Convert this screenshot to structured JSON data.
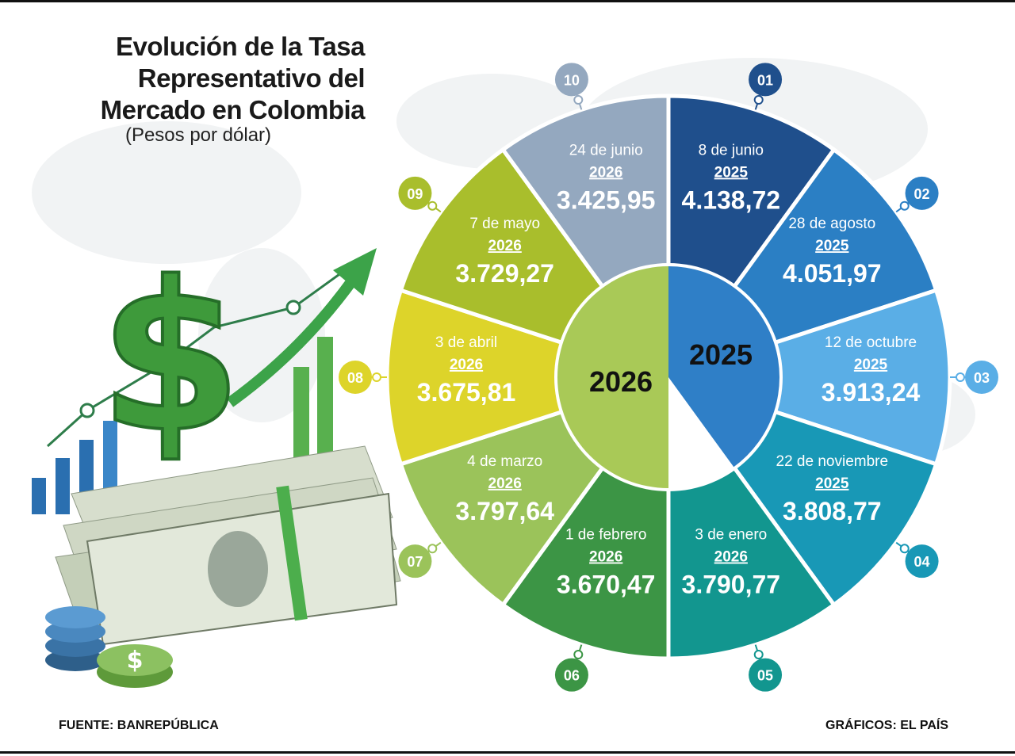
{
  "header": {
    "title_lines": [
      "Evolución de la Tasa",
      "Representativo del",
      "Mercado en Colombia"
    ],
    "subtitle": "(Pesos por dólar)"
  },
  "footer": {
    "source": "FUENTE: BANREPÚBLICA",
    "credit": "GRÁFICOS: EL PAÍS"
  },
  "chart_data": {
    "type": "pie",
    "center_labels": [
      "2026",
      "2025"
    ],
    "center_colors": [
      "#a9c957",
      "#2f7fc7"
    ],
    "segments": [
      {
        "number": "01",
        "date": "8 de junio",
        "year": "2025",
        "value": 4138.72,
        "value_label": "4.138,72",
        "color": "#1f4f8c"
      },
      {
        "number": "02",
        "date": "28 de agosto",
        "year": "2025",
        "value": 4051.97,
        "value_label": "4.051,97",
        "color": "#2b7fc4"
      },
      {
        "number": "03",
        "date": "12 de octubre",
        "year": "2025",
        "value": 3913.24,
        "value_label": "3.913,24",
        "color": "#5aaee6"
      },
      {
        "number": "04",
        "date": "22 de noviembre",
        "year": "2025",
        "value": 3808.77,
        "value_label": "3.808,77",
        "color": "#1898b6"
      },
      {
        "number": "05",
        "date": "3 de enero",
        "year": "2026",
        "value": 3790.77,
        "value_label": "3.790,77",
        "color": "#12968f"
      },
      {
        "number": "06",
        "date": "1 de febrero",
        "year": "2026",
        "value": 3670.47,
        "value_label": "3.670,47",
        "color": "#3c9545"
      },
      {
        "number": "07",
        "date": "4 de marzo",
        "year": "2026",
        "value": 3797.64,
        "value_label": "3.797,64",
        "color": "#9bc35a"
      },
      {
        "number": "08",
        "date": "3 de abril",
        "year": "2026",
        "value": 3675.81,
        "value_label": "3.675,81",
        "color": "#ddd42a"
      },
      {
        "number": "09",
        "date": "7 de mayo",
        "year": "2026",
        "value": 3729.27,
        "value_label": "3.729,27",
        "color": "#a9be2c"
      },
      {
        "number": "10",
        "date": "24 de junio",
        "year": "2026",
        "value": 3425.95,
        "value_label": "3.425,95",
        "color": "#94a8bf"
      }
    ]
  }
}
